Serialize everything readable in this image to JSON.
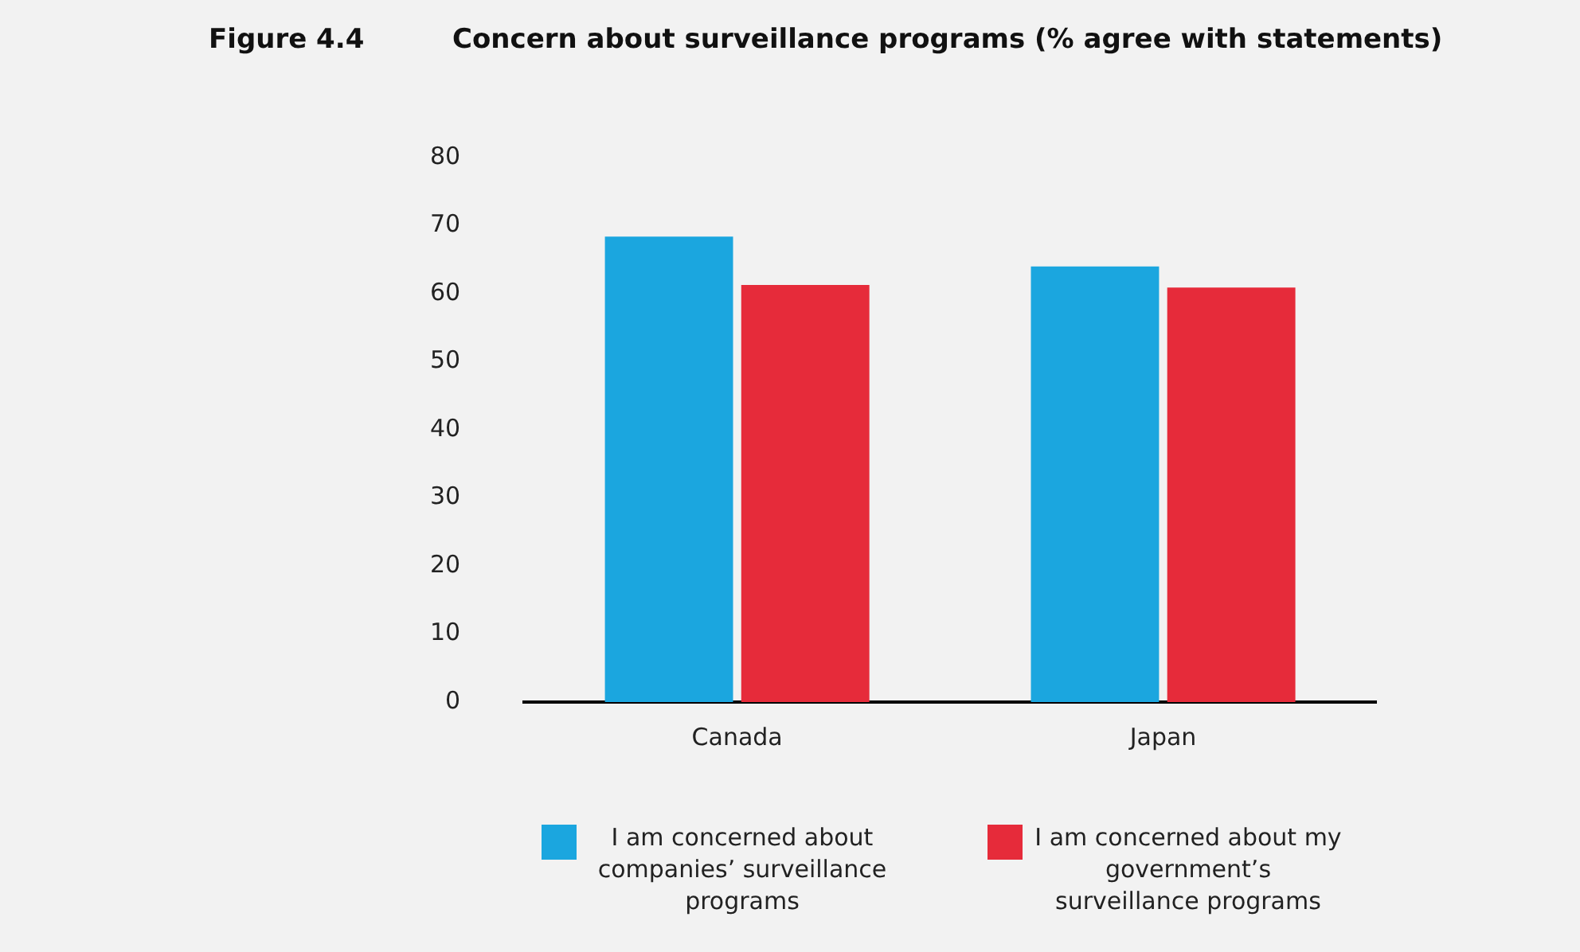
{
  "chart_data": {
    "type": "bar",
    "title": "Concern about surveillance programs (% agree with statements)",
    "annotations": [
      "Figure 4.4"
    ],
    "categories": [
      "Canada",
      "Japan"
    ],
    "series": [
      {
        "name": "I am concerned about companies’ surveillance programs",
        "color": "#1ba6df",
        "values": [
          68.4,
          64.0
        ]
      },
      {
        "name": "I am concerned about my government’s surveillance programs",
        "color": "#e62b3a",
        "values": [
          61.3,
          60.9
        ]
      }
    ],
    "ylim": [
      0,
      80
    ],
    "yticks": [
      0,
      10,
      20,
      30,
      40,
      50,
      60,
      70,
      80
    ],
    "grid": false,
    "legend": "bottom"
  }
}
